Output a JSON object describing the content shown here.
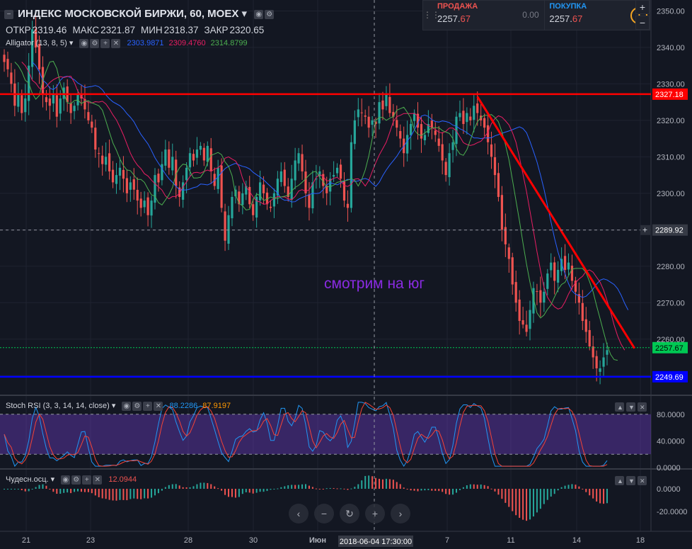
{
  "header": {
    "symbol_title": "ИНДЕКС МОСКОВСКОЙ БИРЖИ, 60, MOEX",
    "ohlc": [
      {
        "key": "ОТКР",
        "value": "2319.46"
      },
      {
        "key": "МАКС",
        "value": "2321.87"
      },
      {
        "key": "МИН",
        "value": "2318.37"
      },
      {
        "key": "ЗАКР",
        "value": "2320.65"
      }
    ],
    "alligator": {
      "label": "Alligator (13, 8, 5)",
      "jaw": "2303.9871",
      "teeth": "2309.4760",
      "lips": "2314.8799"
    }
  },
  "trade_panel": {
    "sell_label": "ПРОДАЖА",
    "sell_price_main": "2257.",
    "sell_price_last": "67",
    "spread": "0.00",
    "buy_label": "ПОКУПКА",
    "buy_price_main": "2257.",
    "buy_price_last": "67",
    "info_glyph": "i"
  },
  "zoom": {
    "plus": "+",
    "minus": "−"
  },
  "stoch": {
    "label": "Stoch RSI (3, 3, 14, 14, close)",
    "k": "88.2286",
    "d": "87.9197"
  },
  "ao": {
    "label": "Чудесн.осц.",
    "value": "12.0944"
  },
  "annotation": "смотрим на юг",
  "crosshair": {
    "time_label": "2018-06-04 17:30:00",
    "price_label": "2289.92"
  },
  "nav": {
    "back": "‹",
    "zoom_out": "−",
    "reset": "↻",
    "zoom_in": "+",
    "forward": "›"
  },
  "colors": {
    "bg": "#131722",
    "up": "#26a69a",
    "down": "#ef5350",
    "jaw": "#2962ff",
    "teeth": "#e91e63",
    "lips": "#4caf50",
    "resistance": "#ff0000",
    "support": "#0000ff",
    "trend": "#ff0000",
    "stoch_k": "#2196f3",
    "stoch_d": "#f44336",
    "stoch_band": "#673ab7",
    "annotation": "#8a2be2",
    "last_price": "#00c853"
  },
  "chart_data": {
    "type": "candlestick",
    "price_axis": {
      "min": 2245,
      "max": 2353,
      "ticks": [
        2250,
        2260,
        2270,
        2280,
        2290,
        2300,
        2310,
        2320,
        2330,
        2340,
        2350
      ],
      "tick_labels": [
        "2260.00",
        "2270.00",
        "2280.00",
        "2300.00",
        "2310.00",
        "2320.00",
        "2330.00",
        "2340.00",
        "2350.00"
      ]
    },
    "time_axis": {
      "labels": [
        "21",
        "23",
        "28",
        "30",
        "Июн",
        "7",
        "11",
        "14",
        "18"
      ]
    },
    "horizontal_lines": [
      {
        "name": "resistance",
        "value": 2327.18,
        "label": "2327.18"
      },
      {
        "name": "support",
        "value": 2249.69,
        "label": "2249.69"
      },
      {
        "name": "last-price",
        "value": 2257.67,
        "label": "2257.67"
      }
    ],
    "trendline": {
      "from_index": 135,
      "from_value": 2326.5,
      "to_index": 178,
      "to_value": 2257.5
    },
    "close": [
      2336,
      2334,
      2330,
      2324,
      2327,
      2322,
      2326,
      2335,
      2345,
      2340,
      2334,
      2327,
      2325,
      2324,
      2327,
      2321,
      2326,
      2329,
      2325,
      2322,
      2324,
      2327,
      2326,
      2323,
      2320,
      2318,
      2312,
      2311,
      2308,
      2310,
      2306,
      2303,
      2305,
      2307,
      2304,
      2300,
      2303,
      2301,
      2298,
      2296,
      2298,
      2294,
      2298,
      2305,
      2303,
      2308,
      2312,
      2307,
      2310,
      2302,
      2299,
      2303,
      2307,
      2311,
      2309,
      2312,
      2313,
      2309,
      2313,
      2306,
      2302,
      2307,
      2296,
      2287,
      2294,
      2299,
      2301,
      2297,
      2300,
      2302,
      2297,
      2294,
      2299,
      2303,
      2300,
      2297,
      2296,
      2300,
      2304,
      2306,
      2302,
      2299,
      2304,
      2309,
      2311,
      2306,
      2300,
      2296,
      2303,
      2304,
      2306,
      2302,
      2300,
      2304,
      2305,
      2307,
      2304,
      2298,
      2296,
      2314,
      2320,
      2323,
      2322,
      2321,
      2318,
      2320,
      2319,
      2325,
      2323,
      2327,
      2322,
      2321,
      2318,
      2315,
      2311,
      2316,
      2319,
      2322,
      2318,
      2315,
      2316,
      2319,
      2318,
      2316,
      2313,
      2309,
      2305,
      2311,
      2314,
      2321,
      2322,
      2319,
      2322,
      2320,
      2324,
      2322,
      2320,
      2318,
      2314,
      2310,
      2305,
      2299,
      2290,
      2286,
      2282,
      2275,
      2270,
      2265,
      2264,
      2262,
      2268,
      2274,
      2273,
      2270,
      2273,
      2278,
      2281,
      2276,
      2279,
      2282,
      2279,
      2281,
      2276,
      2273,
      2270,
      2265,
      2262,
      2258,
      2255,
      2252,
      2252,
      2255,
      2257
    ],
    "alligator": {
      "jaw_last": 2268.0,
      "teeth_last": 2263.0,
      "lips_last": 2259.5
    },
    "stoch_rsi": {
      "range": [
        0,
        100
      ],
      "band": [
        20,
        80
      ],
      "ticks": [
        "80.0000",
        "40.0000",
        "0.0000"
      ]
    },
    "awesome_oscillator": {
      "ticks": [
        "0.0000",
        "-20.0000"
      ]
    }
  }
}
